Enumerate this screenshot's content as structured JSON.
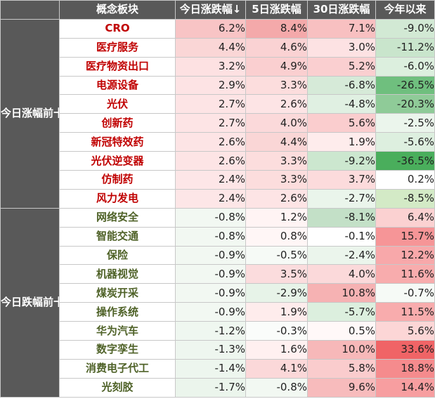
{
  "headers": [
    "概念板块",
    "今日涨跌幅↓",
    "5日涨跌幅",
    "30日涨跌幅",
    "今年以来"
  ],
  "groups": [
    {
      "label": "今日涨幅前十",
      "trend": "up",
      "rows": [
        {
          "name": "CRO",
          "values": [
            "6.2%",
            "8.4%",
            "7.1%",
            "-9.0%"
          ],
          "colors": [
            "#f8c4c5",
            "#f4a9aa",
            "#f8c0c1",
            "#d2e9d4"
          ]
        },
        {
          "name": "医疗服务",
          "values": [
            "4.4%",
            "4.6%",
            "3.0%",
            "-11.2%"
          ],
          "colors": [
            "#fad6d6",
            "#fad2d3",
            "#fde2e3",
            "#c9e5cc"
          ]
        },
        {
          "name": "医疗物资出口",
          "values": [
            "3.2%",
            "4.9%",
            "5.2%",
            "-6.0%"
          ],
          "colors": [
            "#fde1e2",
            "#facfd0",
            "#facfd0",
            "#dcefde"
          ]
        },
        {
          "name": "电源设备",
          "values": [
            "2.9%",
            "3.3%",
            "-6.8%",
            "-26.5%"
          ],
          "colors": [
            "#fde3e4",
            "#fcdddd",
            "#d6ead8",
            "#6fbf7e"
          ]
        },
        {
          "name": "光伏",
          "values": [
            "2.7%",
            "2.6%",
            "-4.8%",
            "-20.3%"
          ],
          "colors": [
            "#fde4e5",
            "#fde4e5",
            "#e0f0e2",
            "#8fcb98"
          ]
        },
        {
          "name": "创新药",
          "values": [
            "2.7%",
            "4.0%",
            "5.6%",
            "-2.5%"
          ],
          "colors": [
            "#fde4e5",
            "#fbd9da",
            "#facdce",
            "#ebf5ec"
          ]
        },
        {
          "name": "新冠特效药",
          "values": [
            "2.6%",
            "4.4%",
            "1.9%",
            "-5.6%"
          ],
          "colors": [
            "#fde4e5",
            "#fad6d6",
            "#feecec",
            "#ddefdf"
          ]
        },
        {
          "name": "光伏逆变器",
          "values": [
            "2.6%",
            "3.3%",
            "-9.2%",
            "-36.5%"
          ],
          "colors": [
            "#fde4e5",
            "#fcdddd",
            "#cce7cf",
            "#4aae5c"
          ]
        },
        {
          "name": "仿制药",
          "values": [
            "2.4%",
            "3.3%",
            "3.7%",
            "0.2%"
          ],
          "colors": [
            "#fde6e7",
            "#fcdddd",
            "#fcdbdc",
            "#ffffff"
          ]
        },
        {
          "name": "风力发电",
          "values": [
            "2.4%",
            "2.6%",
            "-2.7%",
            "-8.5%"
          ],
          "colors": [
            "#fde6e7",
            "#fde4e5",
            "#eaf5eb",
            "#d3eac6"
          ]
        }
      ]
    },
    {
      "label": "今日跌幅前十",
      "trend": "down",
      "rows": [
        {
          "name": "网络安全",
          "values": [
            "-0.8%",
            "1.2%",
            "-8.1%",
            "6.4%"
          ],
          "colors": [
            "#f2f8f2",
            "#fff4f4",
            "#c3e0c7",
            "#fbd1d1"
          ]
        },
        {
          "name": "智能交通",
          "values": [
            "-0.8%",
            "0.8%",
            "-0.1%",
            "15.7%"
          ],
          "colors": [
            "#f2f8f2",
            "#fff6f6",
            "#ffffff",
            "#f69597"
          ]
        },
        {
          "name": "保险",
          "values": [
            "-0.9%",
            "-0.5%",
            "-2.4%",
            "12.2%"
          ],
          "colors": [
            "#f2f8f2",
            "#f6faf6",
            "#ebf5ec",
            "#f8a8aa"
          ]
        },
        {
          "name": "机器视觉",
          "values": [
            "-0.9%",
            "3.5%",
            "4.0%",
            "11.6%"
          ],
          "colors": [
            "#f2f8f2",
            "#fbdcdd",
            "#fbd9da",
            "#f8acad"
          ]
        },
        {
          "name": "煤炭开采",
          "values": [
            "-0.9%",
            "-2.9%",
            "10.8%",
            "-0.7%"
          ],
          "colors": [
            "#f2f8f2",
            "#e7f3e8",
            "#f6b2b3",
            "#f6faf6"
          ]
        },
        {
          "name": "操作系统",
          "values": [
            "-0.9%",
            "1.9%",
            "-5.7%",
            "11.5%"
          ],
          "colors": [
            "#f2f8f2",
            "#feecec",
            "#dcefde",
            "#f8acad"
          ]
        },
        {
          "name": "华为汽车",
          "values": [
            "-1.2%",
            "-0.3%",
            "0.5%",
            "5.6%"
          ],
          "colors": [
            "#eff7f0",
            "#fafcfa",
            "#fff8f8",
            "#fcd6d6"
          ]
        },
        {
          "name": "数字孪生",
          "values": [
            "-1.3%",
            "1.6%",
            "10.0%",
            "33.6%"
          ],
          "colors": [
            "#eef6ef",
            "#fff0f0",
            "#f7b8b9",
            "#f06466"
          ]
        },
        {
          "name": "消费电子代工",
          "values": [
            "-1.4%",
            "4.1%",
            "5.8%",
            "18.8%"
          ],
          "colors": [
            "#edf6ee",
            "#fbd8d9",
            "#facccd",
            "#f58b8d"
          ]
        },
        {
          "name": "光刻胶",
          "values": [
            "-1.7%",
            "-0.8%",
            "9.6%",
            "14.4%"
          ],
          "colors": [
            "#ebf5ec",
            "#f2f8f2",
            "#f7bbbc",
            "#f79ea0"
          ]
        }
      ]
    }
  ]
}
